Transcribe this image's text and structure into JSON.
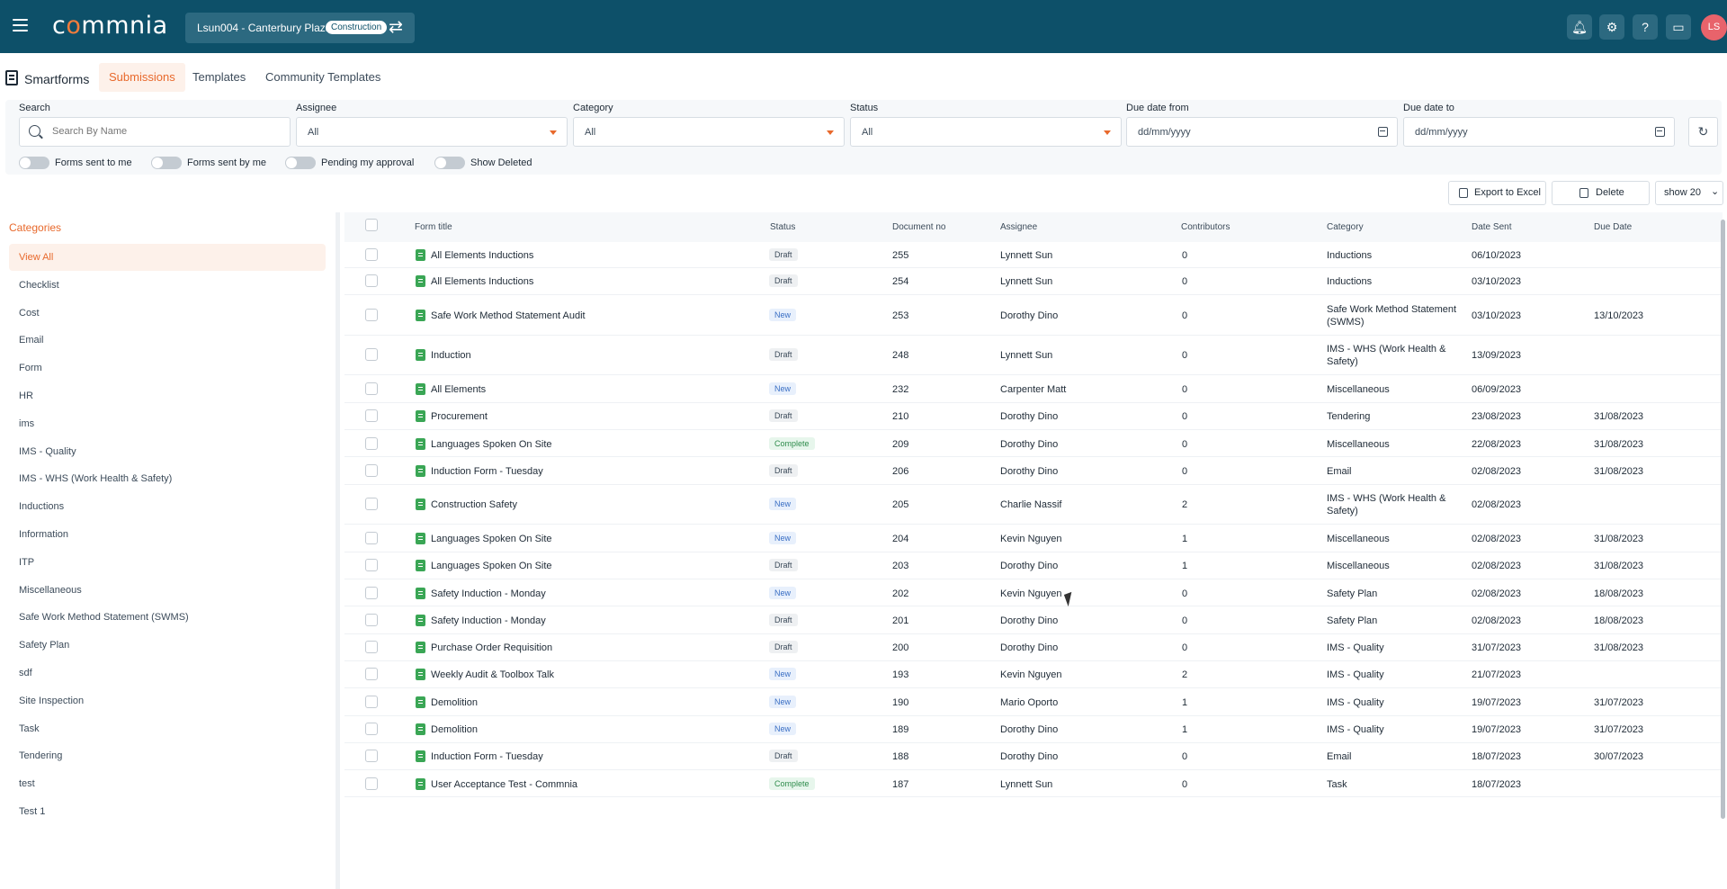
{
  "header": {
    "logo_text": "commnia",
    "project_name": "Lsun004 - Canterbury Plaza",
    "project_badge": "Construction",
    "avatar_initials": "LS"
  },
  "page": {
    "title": "Smartforms",
    "tabs": [
      {
        "label": "Submissions",
        "active": true
      },
      {
        "label": "Templates",
        "active": false
      },
      {
        "label": "Community Templates",
        "active": false
      }
    ]
  },
  "filters": {
    "search": {
      "label": "Search",
      "placeholder": "Search By Name"
    },
    "assignee": {
      "label": "Assignee",
      "value": "All"
    },
    "category": {
      "label": "Category",
      "value": "All"
    },
    "status": {
      "label": "Status",
      "value": "All"
    },
    "due_from": {
      "label": "Due date from",
      "placeholder": "dd/mm/yyyy"
    },
    "due_to": {
      "label": "Due date to",
      "placeholder": "dd/mm/yyyy"
    },
    "toggles": [
      "Forms sent to me",
      "Forms sent by me",
      "Pending my approval",
      "Show Deleted"
    ]
  },
  "actions": {
    "export": "Export to Excel",
    "delete": "Delete",
    "show": "show 20"
  },
  "sidebar": {
    "title": "Categories",
    "items": [
      "View All",
      "Checklist",
      "Cost",
      "Email",
      "Form",
      "HR",
      "ims",
      "IMS - Quality",
      "IMS - WHS (Work Health & Safety)",
      "Inductions",
      "Information",
      "ITP",
      "Miscellaneous",
      "Safe Work Method Statement (SWMS)",
      "Safety Plan",
      "sdf",
      "Site Inspection",
      "Task",
      "Tendering",
      "test",
      "Test 1"
    ]
  },
  "table": {
    "columns": [
      "Form title",
      "Status",
      "Document no",
      "Assignee",
      "Contributors",
      "Category",
      "Date Sent",
      "Due Date"
    ],
    "rows": [
      {
        "title": "All Elements Inductions",
        "status": "Draft",
        "doc": "255",
        "assignee": "Lynnett Sun",
        "contributors": "0",
        "category": [
          "Inductions"
        ],
        "sent": "06/10/2023",
        "due": ""
      },
      {
        "title": "All Elements Inductions",
        "status": "Draft",
        "doc": "254",
        "assignee": "Lynnett Sun",
        "contributors": "0",
        "category": [
          "Inductions"
        ],
        "sent": "03/10/2023",
        "due": ""
      },
      {
        "title": "Safe Work Method Statement Audit",
        "status": "New",
        "doc": "253",
        "assignee": "Dorothy Dino",
        "contributors": "0",
        "category": [
          "Safe Work Method Statement",
          "(SWMS)"
        ],
        "sent": "03/10/2023",
        "due": "13/10/2023"
      },
      {
        "title": "Induction",
        "status": "Draft",
        "doc": "248",
        "assignee": "Lynnett Sun",
        "contributors": "0",
        "category": [
          "IMS - WHS (Work Health &",
          "Safety)"
        ],
        "sent": "13/09/2023",
        "due": ""
      },
      {
        "title": "All Elements",
        "status": "New",
        "doc": "232",
        "assignee": "Carpenter Matt",
        "contributors": "0",
        "category": [
          "Miscellaneous"
        ],
        "sent": "06/09/2023",
        "due": ""
      },
      {
        "title": "Procurement",
        "status": "Draft",
        "doc": "210",
        "assignee": "Dorothy Dino",
        "contributors": "0",
        "category": [
          "Tendering"
        ],
        "sent": "23/08/2023",
        "due": "31/08/2023"
      },
      {
        "title": "Languages Spoken On Site",
        "status": "Complete",
        "doc": "209",
        "assignee": "Dorothy Dino",
        "contributors": "0",
        "category": [
          "Miscellaneous"
        ],
        "sent": "22/08/2023",
        "due": "31/08/2023"
      },
      {
        "title": "Induction Form - Tuesday",
        "status": "Draft",
        "doc": "206",
        "assignee": "Dorothy Dino",
        "contributors": "0",
        "category": [
          "Email"
        ],
        "sent": "02/08/2023",
        "due": "31/08/2023"
      },
      {
        "title": "Construction Safety",
        "status": "New",
        "doc": "205",
        "assignee": "Charlie Nassif",
        "contributors": "2",
        "category": [
          "IMS - WHS (Work Health &",
          "Safety)"
        ],
        "sent": "02/08/2023",
        "due": ""
      },
      {
        "title": "Languages Spoken On Site",
        "status": "New",
        "doc": "204",
        "assignee": "Kevin Nguyen",
        "contributors": "1",
        "category": [
          "Miscellaneous"
        ],
        "sent": "02/08/2023",
        "due": "31/08/2023"
      },
      {
        "title": "Languages Spoken On Site",
        "status": "Draft",
        "doc": "203",
        "assignee": "Dorothy Dino",
        "contributors": "1",
        "category": [
          "Miscellaneous"
        ],
        "sent": "02/08/2023",
        "due": "31/08/2023"
      },
      {
        "title": "Safety Induction - Monday",
        "status": "New",
        "doc": "202",
        "assignee": "Kevin Nguyen",
        "contributors": "0",
        "category": [
          "Safety Plan"
        ],
        "sent": "02/08/2023",
        "due": "18/08/2023"
      },
      {
        "title": "Safety Induction - Monday",
        "status": "Draft",
        "doc": "201",
        "assignee": "Dorothy Dino",
        "contributors": "0",
        "category": [
          "Safety Plan"
        ],
        "sent": "02/08/2023",
        "due": "18/08/2023"
      },
      {
        "title": "Purchase Order Requisition",
        "status": "Draft",
        "doc": "200",
        "assignee": "Dorothy Dino",
        "contributors": "0",
        "category": [
          "IMS - Quality"
        ],
        "sent": "31/07/2023",
        "due": "31/08/2023"
      },
      {
        "title": "Weekly Audit & Toolbox Talk",
        "status": "New",
        "doc": "193",
        "assignee": "Kevin Nguyen",
        "contributors": "2",
        "category": [
          "IMS - Quality"
        ],
        "sent": "21/07/2023",
        "due": ""
      },
      {
        "title": "Demolition",
        "status": "New",
        "doc": "190",
        "assignee": "Mario Oporto",
        "contributors": "1",
        "category": [
          "IMS - Quality"
        ],
        "sent": "19/07/2023",
        "due": "31/07/2023"
      },
      {
        "title": "Demolition",
        "status": "New",
        "doc": "189",
        "assignee": "Dorothy Dino",
        "contributors": "1",
        "category": [
          "IMS - Quality"
        ],
        "sent": "19/07/2023",
        "due": "31/07/2023"
      },
      {
        "title": "Induction Form - Tuesday",
        "status": "Draft",
        "doc": "188",
        "assignee": "Dorothy Dino",
        "contributors": "0",
        "category": [
          "Email"
        ],
        "sent": "18/07/2023",
        "due": "30/07/2023"
      },
      {
        "title": "User Acceptance Test - Commnia",
        "status": "Complete",
        "doc": "187",
        "assignee": "Lynnett Sun",
        "contributors": "0",
        "category": [
          "Task"
        ],
        "sent": "18/07/2023",
        "due": ""
      }
    ]
  }
}
